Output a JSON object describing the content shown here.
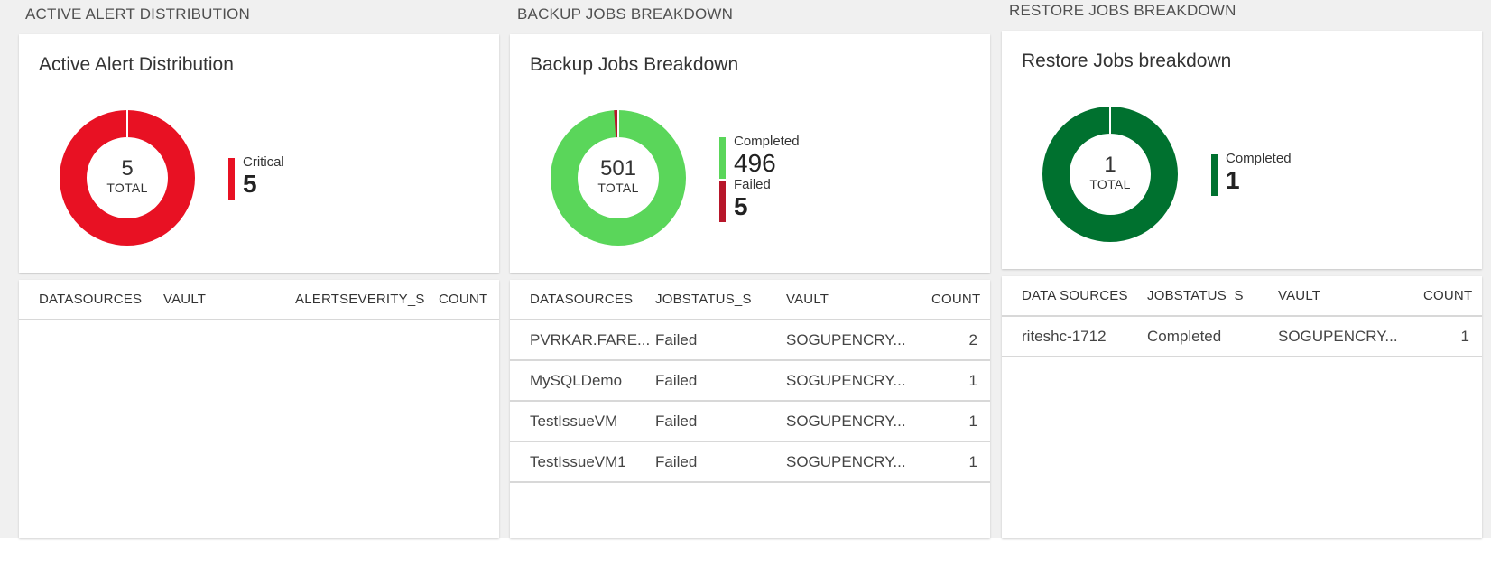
{
  "alerts": {
    "section_title": "ACTIVE ALERT DISTRIBUTION",
    "card_title": "Active Alert Distribution",
    "total": "5",
    "total_label": "TOTAL",
    "legend": [
      {
        "name": "Critical",
        "value": "5",
        "color": "#e81123"
      }
    ],
    "columns": [
      "DATASOURCES",
      "VAULT",
      "ALERTSEVERITY_S",
      "COUNT"
    ],
    "rows": []
  },
  "backup": {
    "section_title": "BACKUP JOBS BREAKDOWN",
    "card_title": "Backup Jobs Breakdown",
    "total": "501",
    "total_label": "TOTAL",
    "legend": [
      {
        "name": "Completed",
        "value": "496",
        "color": "#5ad65a"
      },
      {
        "name": "Failed",
        "value": "5",
        "color": "#b7162a"
      }
    ],
    "columns": [
      "DATASOURCES",
      "JOBSTATUS_S",
      "VAULT",
      "COUNT"
    ],
    "rows": [
      {
        "datasource": "PVRKAR.FARE...",
        "status": "Failed",
        "vault": "SOGUPENCRY...",
        "count": "2"
      },
      {
        "datasource": "MySQLDemo",
        "status": "Failed",
        "vault": "SOGUPENCRY...",
        "count": "1"
      },
      {
        "datasource": "TestIssueVM",
        "status": "Failed",
        "vault": "SOGUPENCRY...",
        "count": "1"
      },
      {
        "datasource": "TestIssueVM1",
        "status": "Failed",
        "vault": "SOGUPENCRY...",
        "count": "1"
      }
    ]
  },
  "restore": {
    "section_title": "RESTORE JOBS BREAKDOWN",
    "card_title": "Restore Jobs breakdown",
    "total": "1",
    "total_label": "TOTAL",
    "legend": [
      {
        "name": "Completed",
        "value": "1",
        "color": "#00712f"
      }
    ],
    "columns": [
      "DATA SOURCES",
      "JOBSTATUS_S",
      "VAULT",
      "COUNT"
    ],
    "rows": [
      {
        "datasource": "riteshc-1712",
        "status": "Completed",
        "vault": "SOGUPENCRY...",
        "count": "1"
      }
    ]
  }
}
